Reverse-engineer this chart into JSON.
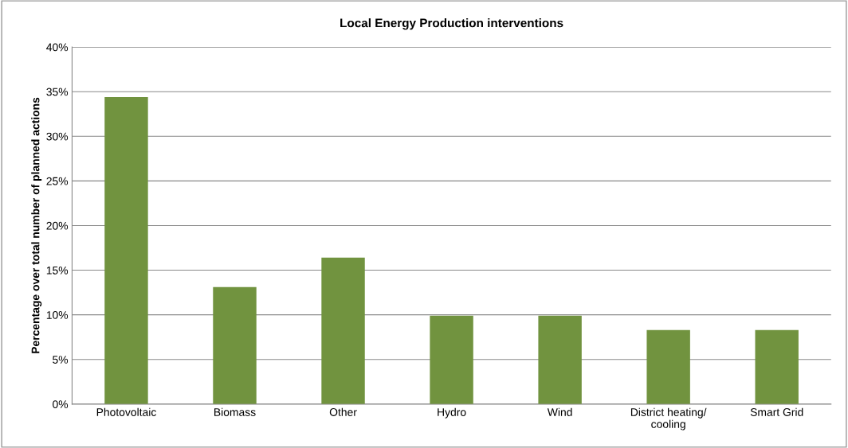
{
  "chart_data": {
    "type": "bar",
    "title": "Local Energy Production interventions",
    "ylabel": "Percentage over total number of planned actions",
    "categories": [
      "Photovoltaic",
      "Biomass",
      "Other",
      "Hydro",
      "Wind",
      "District heating/\ncooling",
      "Smart Grid"
    ],
    "values": [
      34.4,
      13.1,
      16.4,
      9.9,
      9.9,
      8.3,
      8.3
    ],
    "color": "#71933f",
    "ylim": [
      0,
      40
    ],
    "yticks": [
      {
        "value": 0,
        "label": "0%"
      },
      {
        "value": 5,
        "label": "5%"
      },
      {
        "value": 10,
        "label": "10%"
      },
      {
        "value": 15,
        "label": "15%"
      },
      {
        "value": 20,
        "label": "20%"
      },
      {
        "value": 25,
        "label": "25%"
      },
      {
        "value": 30,
        "label": "30%"
      },
      {
        "value": 35,
        "label": "35%"
      },
      {
        "value": 40,
        "label": "40%"
      }
    ],
    "grid": "y",
    "legend": false
  }
}
